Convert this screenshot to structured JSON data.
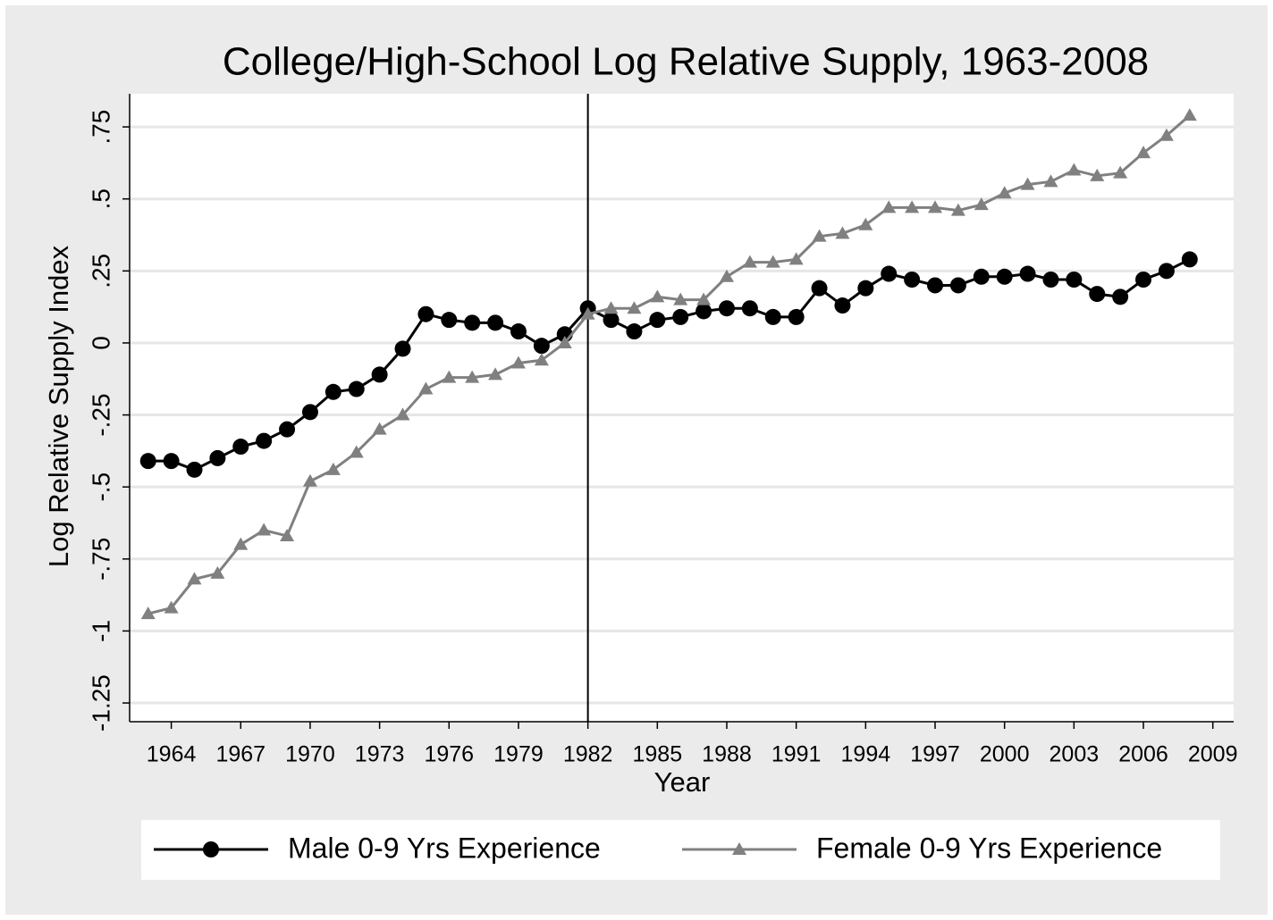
{
  "chart_data": {
    "type": "line",
    "title": "College/High-School Log Relative Supply, 1963-2008",
    "x_label": "Year",
    "y_label": "Log Relative Supply Index",
    "x": [
      1963,
      1964,
      1965,
      1966,
      1967,
      1968,
      1969,
      1970,
      1971,
      1972,
      1973,
      1974,
      1975,
      1976,
      1977,
      1978,
      1979,
      1980,
      1981,
      1982,
      1983,
      1984,
      1985,
      1986,
      1987,
      1988,
      1989,
      1990,
      1991,
      1992,
      1993,
      1994,
      1995,
      1996,
      1997,
      1998,
      1999,
      2000,
      2001,
      2002,
      2003,
      2004,
      2005,
      2006,
      2007,
      2008
    ],
    "series": [
      {
        "name": "Male 0-9 Yrs Experience",
        "color": "#000000",
        "marker": "circle",
        "values": [
          -0.41,
          -0.41,
          -0.44,
          -0.4,
          -0.36,
          -0.34,
          -0.3,
          -0.24,
          -0.17,
          -0.16,
          -0.11,
          -0.02,
          0.1,
          0.08,
          0.07,
          0.07,
          0.04,
          -0.01,
          0.03,
          0.12,
          0.08,
          0.04,
          0.08,
          0.09,
          0.11,
          0.12,
          0.12,
          0.09,
          0.09,
          0.19,
          0.13,
          0.19,
          0.24,
          0.22,
          0.2,
          0.2,
          0.23,
          0.23,
          0.24,
          0.22,
          0.22,
          0.17,
          0.16,
          0.22,
          0.25,
          0.29
        ]
      },
      {
        "name": "Female 0-9 Yrs Experience",
        "color": "#808080",
        "marker": "triangle",
        "values": [
          -0.94,
          -0.92,
          -0.82,
          -0.8,
          -0.7,
          -0.65,
          -0.67,
          -0.48,
          -0.44,
          -0.38,
          -0.3,
          -0.25,
          -0.16,
          -0.12,
          -0.12,
          -0.11,
          -0.07,
          -0.06,
          0,
          0.1,
          0.12,
          0.12,
          0.16,
          0.15,
          0.15,
          0.23,
          0.28,
          0.28,
          0.29,
          0.37,
          0.38,
          0.41,
          0.47,
          0.47,
          0.47,
          0.46,
          0.48,
          0.52,
          0.55,
          0.56,
          0.6,
          0.58,
          0.59,
          0.66,
          0.72,
          0.79
        ]
      }
    ],
    "xlim": [
      1962.2,
      2009.9
    ],
    "ylim": [
      -1.315,
      0.865
    ],
    "xticks": [
      1964,
      1967,
      1970,
      1973,
      1976,
      1979,
      1982,
      1985,
      1988,
      1991,
      1994,
      1997,
      2000,
      2003,
      2006,
      2009
    ],
    "yticks": [
      {
        "value": -1.25,
        "label": "-1.25"
      },
      -1,
      {
        "value": -0.75,
        "label": "-.75"
      },
      {
        "value": -0.5,
        "label": "-.5"
      },
      {
        "value": -0.25,
        "label": "-.25"
      },
      0,
      {
        "value": 0.25,
        "label": ".25"
      },
      {
        "value": 0.5,
        "label": ".5"
      },
      {
        "value": 0.75,
        "label": ".75"
      }
    ],
    "vline": 1982,
    "grid": true,
    "legend": "bottom"
  }
}
